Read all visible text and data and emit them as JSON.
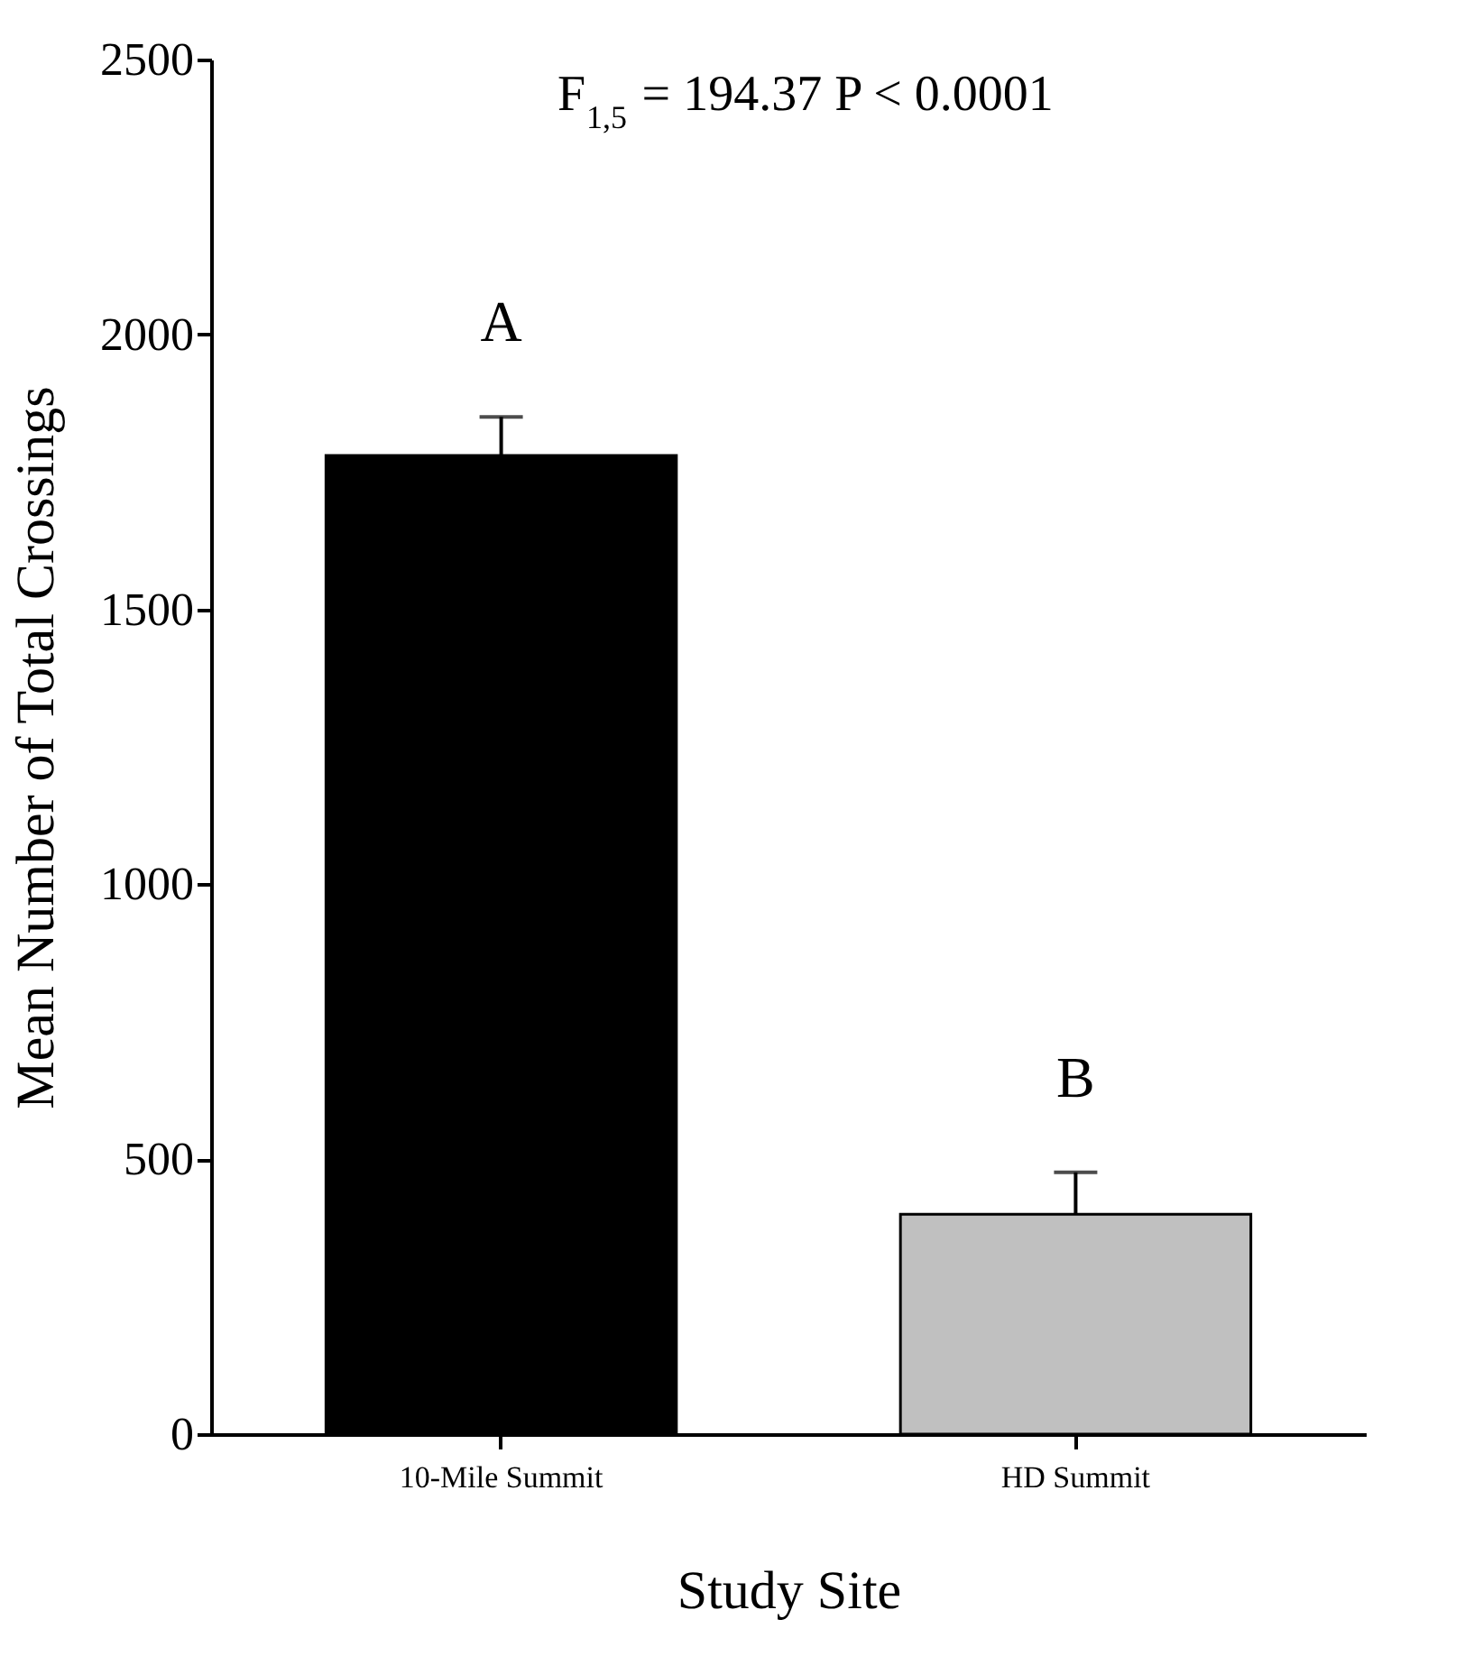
{
  "chart_data": {
    "type": "bar",
    "categories": [
      "10-Mile Summit",
      "HD Summit"
    ],
    "values": [
      1780,
      400
    ],
    "colors": [
      "#000000",
      "#c0c0c0"
    ],
    "errors": [
      [
        1780,
        1850
      ],
      [
        400,
        476
      ]
    ],
    "xlabel": "Study Site",
    "ylabel": "Mean Number of Total Crossings",
    "ylim": [
      0,
      2500
    ],
    "yticks": [
      0,
      500,
      1000,
      1500,
      2000,
      2500
    ],
    "grid": false,
    "annotations": [
      "F$_{1,5}$ = 194.37  P < 0.0001",
      "A",
      "B"
    ]
  }
}
